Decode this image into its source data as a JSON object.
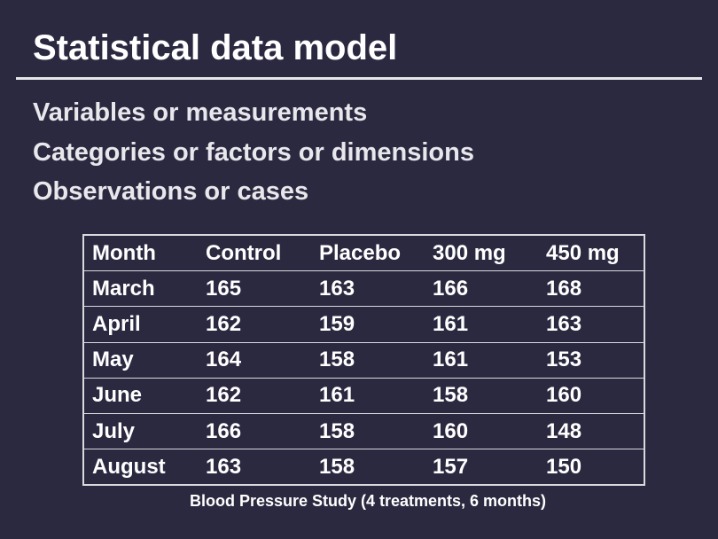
{
  "slide": {
    "title": "Statistical data model",
    "bullets": [
      "Variables or measurements",
      "Categories or factors or dimensions",
      "Observations or cases"
    ],
    "caption": "Blood Pressure Study (4 treatments, 6 months)"
  },
  "table": {
    "headers": [
      "Month",
      "Control",
      "Placebo",
      "300 mg",
      "450 mg"
    ],
    "rows": [
      [
        "March",
        "165",
        "163",
        "166",
        "168"
      ],
      [
        "April",
        "162",
        "159",
        "161",
        "163"
      ],
      [
        "May",
        "164",
        "158",
        "161",
        "153"
      ],
      [
        "June",
        "162",
        "161",
        "158",
        "160"
      ],
      [
        "July",
        "166",
        "158",
        "160",
        "148"
      ],
      [
        "August",
        "163",
        "158",
        "157",
        "150"
      ]
    ]
  },
  "colors": {
    "background": "#2b2940",
    "text": "#ffffff",
    "rule": "#e6e6ea"
  }
}
